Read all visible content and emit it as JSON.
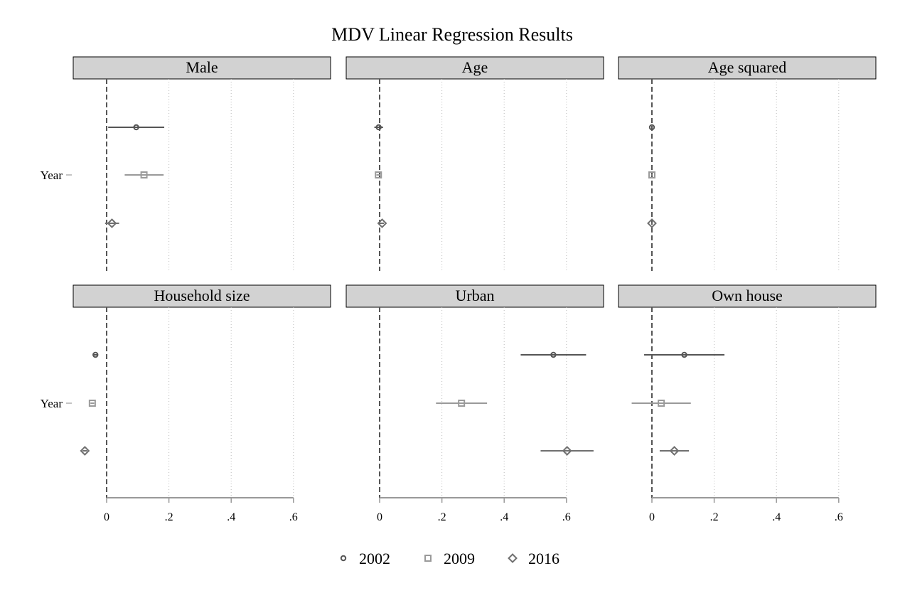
{
  "chart_data": {
    "type": "scatter",
    "title": "MDV Linear Regression Results",
    "x_ticks": [
      0,
      0.2,
      0.4,
      0.6
    ],
    "x_tick_labels": [
      "0",
      ".2",
      ".4",
      ".6"
    ],
    "y_label": "Year",
    "reference_line_x": 0,
    "grid": "vertical dotted",
    "legend_position": "bottom",
    "series": [
      {
        "name": "2002",
        "marker": "circle",
        "color": "#555555"
      },
      {
        "name": "2009",
        "marker": "square",
        "color": "#9a9a9a"
      },
      {
        "name": "2016",
        "marker": "diamond",
        "color": "#707070"
      }
    ],
    "panels": [
      {
        "label": "Male",
        "show_axis": false,
        "estimates": [
          {
            "series": "2002",
            "estimate": 0.095,
            "ci_low": 0.005,
            "ci_high": 0.185
          },
          {
            "series": "2009",
            "estimate": 0.12,
            "ci_low": 0.058,
            "ci_high": 0.183
          },
          {
            "series": "2016",
            "estimate": 0.017,
            "ci_low": -0.005,
            "ci_high": 0.04
          }
        ]
      },
      {
        "label": "Age",
        "show_axis": false,
        "estimates": [
          {
            "series": "2002",
            "estimate": -0.003,
            "ci_low": -0.017,
            "ci_high": 0.011
          },
          {
            "series": "2009",
            "estimate": -0.004,
            "ci_low": -0.01,
            "ci_high": 0.002
          },
          {
            "series": "2016",
            "estimate": 0.008,
            "ci_low": 0.002,
            "ci_high": 0.014
          }
        ]
      },
      {
        "label": "Age squared",
        "show_axis": false,
        "estimates": [
          {
            "series": "2002",
            "estimate": 0.0,
            "ci_low": -0.001,
            "ci_high": 0.001
          },
          {
            "series": "2009",
            "estimate": 0.0,
            "ci_low": -0.001,
            "ci_high": 0.001
          },
          {
            "series": "2016",
            "estimate": 0.0,
            "ci_low": -0.001,
            "ci_high": 0.001
          }
        ]
      },
      {
        "label": "Household size",
        "show_axis": true,
        "estimates": [
          {
            "series": "2002",
            "estimate": -0.036,
            "ci_low": -0.042,
            "ci_high": -0.03
          },
          {
            "series": "2009",
            "estimate": -0.046,
            "ci_low": -0.052,
            "ci_high": -0.04
          },
          {
            "series": "2016",
            "estimate": -0.07,
            "ci_low": -0.077,
            "ci_high": -0.063
          }
        ]
      },
      {
        "label": "Urban",
        "show_axis": true,
        "estimates": [
          {
            "series": "2002",
            "estimate": 0.558,
            "ci_low": 0.453,
            "ci_high": 0.663
          },
          {
            "series": "2009",
            "estimate": 0.263,
            "ci_low": 0.181,
            "ci_high": 0.345
          },
          {
            "series": "2016",
            "estimate": 0.602,
            "ci_low": 0.517,
            "ci_high": 0.687
          }
        ]
      },
      {
        "label": "Own house",
        "show_axis": true,
        "estimates": [
          {
            "series": "2002",
            "estimate": 0.104,
            "ci_low": -0.025,
            "ci_high": 0.233
          },
          {
            "series": "2009",
            "estimate": 0.03,
            "ci_low": -0.065,
            "ci_high": 0.125
          },
          {
            "series": "2016",
            "estimate": 0.072,
            "ci_low": 0.025,
            "ci_high": 0.119
          }
        ]
      }
    ]
  }
}
